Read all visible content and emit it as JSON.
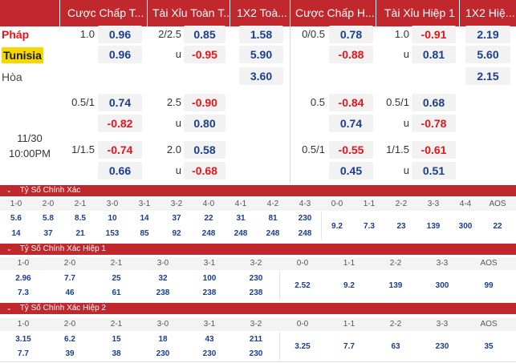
{
  "header": {
    "columns": [
      "Cược Chấp T...",
      "Tài Xỉu Toàn T...",
      "1X2 Toà...",
      "Cược Chấp H...",
      "Tài Xỉu Hiệp 1",
      "1X2 Hiệ..."
    ]
  },
  "match": {
    "home": "Pháp",
    "away": "Tunisia",
    "draw": "Hòa",
    "date": "11/30",
    "time": "10:00PM"
  },
  "odds": {
    "ft_handicap": [
      {
        "line": "1.0",
        "home": "0.96",
        "away": "0.96"
      },
      {
        "line": "0.5/1",
        "home": "0.74",
        "away": "-0.82"
      },
      {
        "line": "1/1.5",
        "home": "-0.74",
        "away": "0.66"
      }
    ],
    "ft_ou": [
      {
        "line": "2/2.5",
        "over": "0.85",
        "under_label": "u",
        "under": "-0.95"
      },
      {
        "line": "2.5",
        "over": "-0.90",
        "under_label": "u",
        "under": "0.80"
      },
      {
        "line": "2.0",
        "over": "0.58",
        "under_label": "u",
        "under": "-0.68"
      }
    ],
    "ft_1x2": {
      "home": "1.58",
      "away": "5.90",
      "draw": "3.60"
    },
    "h1_handicap": [
      {
        "line": "0/0.5",
        "home": "0.78",
        "away": "-0.88"
      },
      {
        "line": "0.5",
        "home": "-0.84",
        "away": "0.74"
      },
      {
        "line": "0.5/1",
        "home": "-0.55",
        "away": "0.45"
      }
    ],
    "h1_ou": [
      {
        "line": "1.0",
        "over": "-0.91",
        "under_label": "u",
        "under": "0.81"
      },
      {
        "line": "0.5/1",
        "over": "0.68",
        "under_label": "u",
        "under": "-0.78"
      },
      {
        "line": "1/1.5",
        "over": "-0.61",
        "under_label": "u",
        "under": "0.51"
      }
    ],
    "h1_1x2": {
      "home": "2.19",
      "away": "5.60",
      "draw": "2.15"
    }
  },
  "correct_score": {
    "title": "Tỷ Số Chính Xác",
    "headers": [
      "1-0",
      "2-0",
      "2-1",
      "3-0",
      "3-1",
      "3-2",
      "4-0",
      "4-1",
      "4-2",
      "4-3",
      "0-0",
      "1-1",
      "2-2",
      "3-3",
      "4-4",
      "AOS"
    ],
    "home_row": [
      "5.6",
      "5.8",
      "8.5",
      "10",
      "14",
      "37",
      "22",
      "31",
      "81",
      "230"
    ],
    "away_row": [
      "14",
      "37",
      "21",
      "153",
      "85",
      "92",
      "248",
      "248",
      "248",
      "248"
    ],
    "draws": [
      "9.2",
      "7.3",
      "23",
      "139",
      "300",
      "22"
    ]
  },
  "correct_score_h1": {
    "title": "Tỷ Số Chính Xác Hiệp 1",
    "headers": [
      "1-0",
      "2-0",
      "2-1",
      "3-0",
      "3-1",
      "3-2",
      "0-0",
      "1-1",
      "2-2",
      "3-3",
      "AOS"
    ],
    "home_row": [
      "2.96",
      "7.7",
      "25",
      "32",
      "100",
      "230"
    ],
    "away_row": [
      "7.3",
      "46",
      "61",
      "238",
      "238",
      "238"
    ],
    "draws": [
      "2.52",
      "9.2",
      "139",
      "300",
      "99"
    ]
  },
  "correct_score_h2": {
    "title": "Tỷ Số Chính Xác Hiệp 2",
    "headers": [
      "1-0",
      "2-0",
      "2-1",
      "3-0",
      "3-1",
      "3-2",
      "0-0",
      "1-1",
      "2-2",
      "3-3",
      "AOS"
    ],
    "home_row": [
      "3.15",
      "6.2",
      "15",
      "18",
      "43",
      "211"
    ],
    "away_row": [
      "7.7",
      "39",
      "38",
      "230",
      "230",
      "230"
    ],
    "draws": [
      "3.25",
      "7.7",
      "63",
      "230",
      "35"
    ]
  },
  "colors": {
    "header_bg": "#c0282d",
    "positive": "#1b3e8a",
    "negative": "#e0171c",
    "home_highlight": "#e0171c",
    "away_highlight_bg": "#f5d800"
  }
}
